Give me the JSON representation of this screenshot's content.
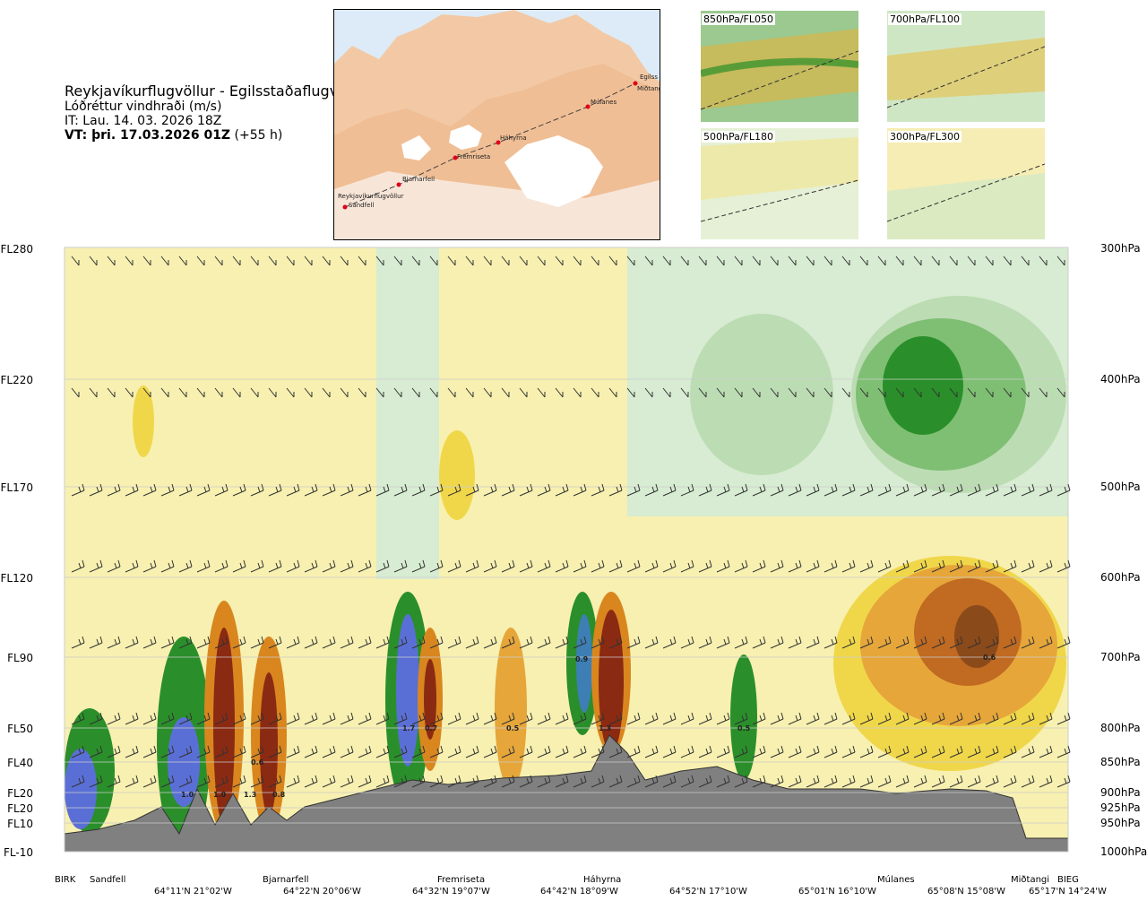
{
  "header": {
    "title": "Reykjavíkurflugvöllur - Egilsstaðaflugvöllur",
    "variable": "Lóðréttur vindhraði (m/s)",
    "issue_time": "IT: Lau. 14. 03. 2026 18Z",
    "valid_time_bold": "VT: þri. 17.03.2026 01Z",
    "valid_time_lead": "(+55 h)"
  },
  "map": {
    "places": [
      "Reykjavíkurflugvöllur",
      "Sandfell",
      "Bjarnarfell",
      "Fremriseta",
      "Háhyrna",
      "Múlanes",
      "Egilss",
      "Miðtangi"
    ]
  },
  "mini_maps": [
    {
      "label": "850hPa/FL050"
    },
    {
      "label": "700hPa/FL100"
    },
    {
      "label": "500hPa/FL180"
    },
    {
      "label": "300hPa/FL300"
    }
  ],
  "chart_data": {
    "type": "heatmap",
    "description_values": "vertical cross-section of vertical wind speed (m/s)",
    "left_axis_levels": [
      "FL280",
      "FL220",
      "FL170",
      "FL120",
      "FL90",
      "FL50",
      "FL40",
      "FL20",
      "FL20",
      "FL10",
      "FL-10"
    ],
    "right_axis_levels": [
      "300hPa",
      "400hPa",
      "500hPa",
      "600hPa",
      "700hPa",
      "800hPa",
      "850hPa",
      "900hPa",
      "925hPa",
      "950hPa",
      "1000hPa"
    ],
    "pressure_levels_hpa": [
      300,
      400,
      500,
      600,
      700,
      800,
      850,
      900,
      925,
      950,
      1000
    ],
    "bottom_places": [
      "BIRK",
      "Sandfell",
      "Bjarnarfell",
      "Fremriseta",
      "Háhyrna",
      "Múlanes",
      "Miðtangi",
      "BIEG"
    ],
    "bottom_coords": [
      "64°11'N 21°02'W",
      "64°22'N 20°06'W",
      "64°32'N 19°07'W",
      "64°42'N 18°09'W",
      "64°52'N 17°10'W",
      "65°01'N 16°10'W",
      "65°08'N 15°08'W",
      "65°17'N 14°24'W"
    ],
    "contour_labels": [
      "1.0",
      "1.0",
      "1.3",
      "0.8",
      "0.6",
      "1.7",
      "0.7",
      "0.5",
      "0.9",
      "1.3",
      "0.5",
      "0.6"
    ],
    "colors": {
      "strong_updraft": "#8b2a12",
      "updraft": "#d9861f",
      "weak_updraft": "#f0d74a",
      "faint_updraft": "#f7f0b0",
      "neutral": "#ffffff",
      "faint_downdraft": "#d7ecd2",
      "downdraft": "#7fbf73",
      "strong_downdraft": "#2a8f2a",
      "very_strong_downdraft": "#5a6fd6",
      "terrain": "#808080"
    }
  }
}
